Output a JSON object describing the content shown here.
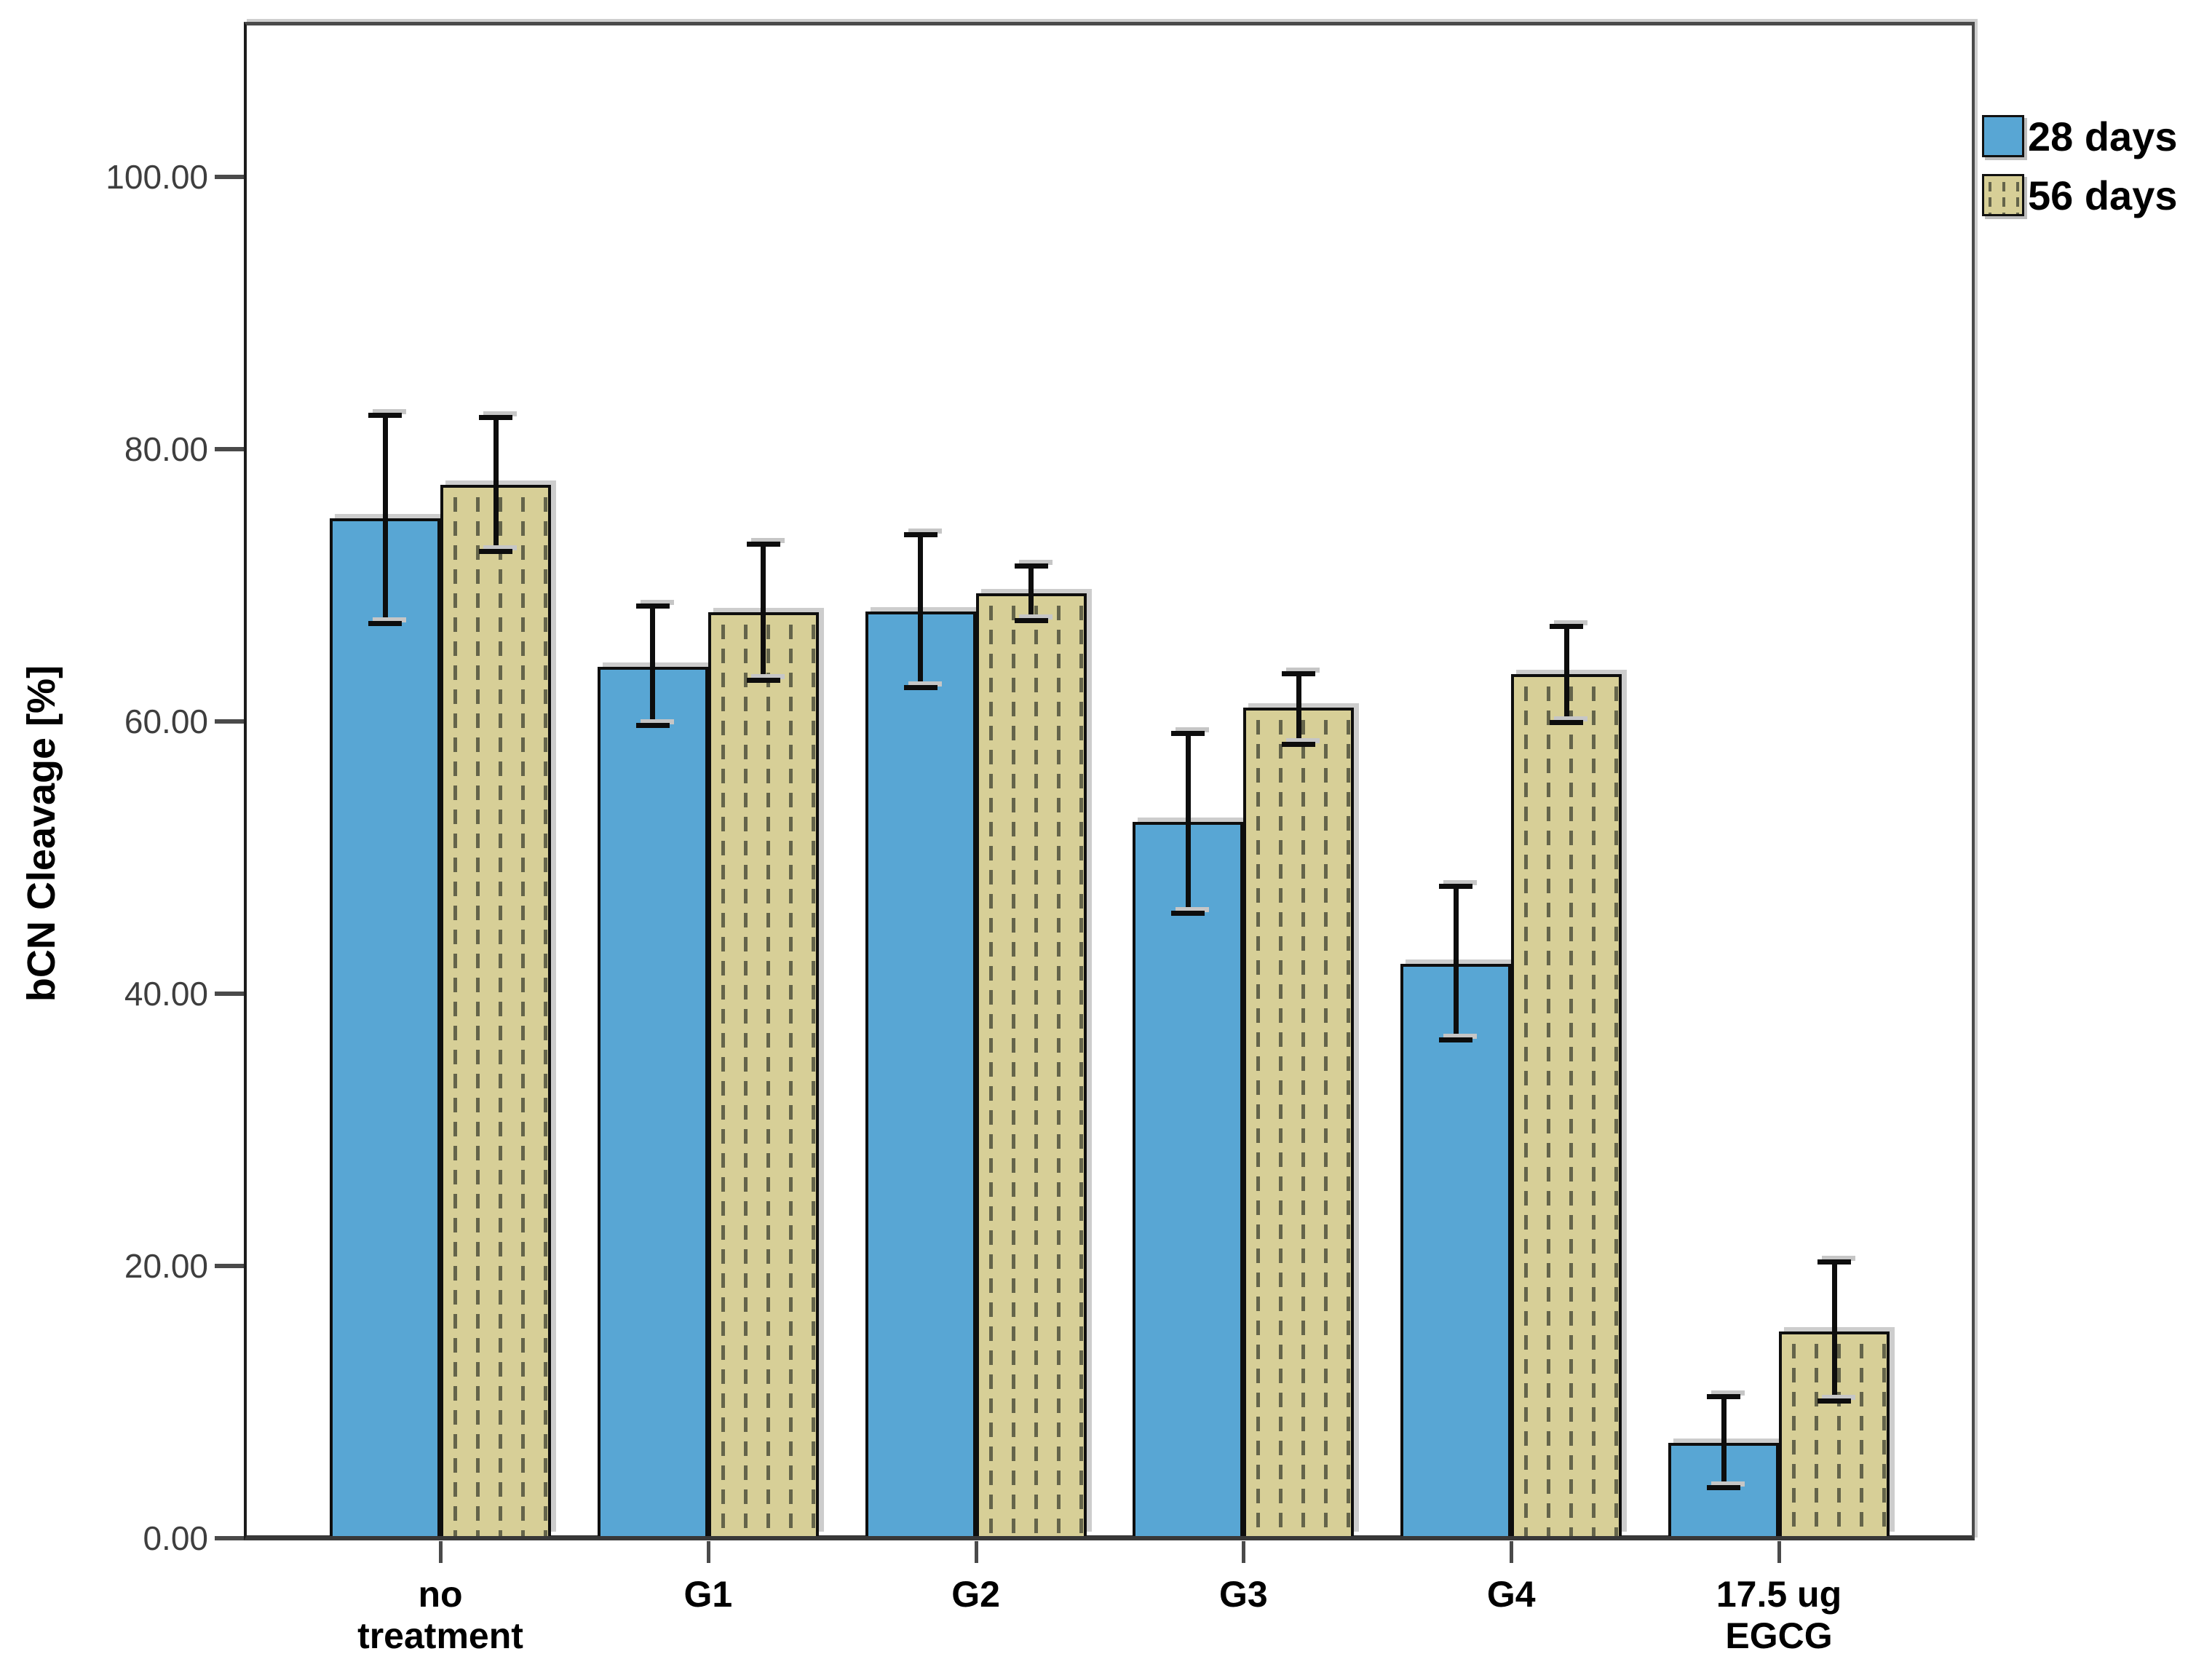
{
  "chart_data": {
    "type": "bar",
    "title": "",
    "xlabel": "",
    "ylabel": "bCN Cleavage [%]",
    "ylim": [
      0,
      111
    ],
    "grid": false,
    "error_bars": true,
    "legend_position": "top-right",
    "y_ticks": [
      {
        "value": 0,
        "label": "0.00"
      },
      {
        "value": 20,
        "label": "20.00"
      },
      {
        "value": 40,
        "label": "40.00"
      },
      {
        "value": 60,
        "label": "60.00"
      },
      {
        "value": 80,
        "label": "80.00"
      },
      {
        "value": 100,
        "label": "100.00"
      }
    ],
    "categories": [
      "no\ntreatment",
      "G1",
      "G2",
      "G3",
      "G4",
      "17.5 ug\nEGCG"
    ],
    "series": [
      {
        "name": "28 days",
        "color": "#58A6D4",
        "pattern": "solid",
        "values": [
          74.9,
          64.0,
          68.1,
          52.6,
          42.2,
          7.0
        ],
        "err_low": [
          67.2,
          59.7,
          62.5,
          45.9,
          36.6,
          3.7
        ],
        "err_high": [
          82.5,
          68.5,
          73.7,
          59.1,
          47.9,
          10.4
        ]
      },
      {
        "name": "56 days",
        "color": "#D7CF97",
        "pattern": "vertical-dashes",
        "values": [
          77.4,
          68.0,
          69.4,
          61.0,
          63.5,
          15.2
        ],
        "err_low": [
          72.5,
          63.0,
          67.4,
          58.3,
          59.9,
          10.1
        ],
        "err_high": [
          82.3,
          73.0,
          71.4,
          63.5,
          67.0,
          20.3
        ]
      }
    ]
  }
}
